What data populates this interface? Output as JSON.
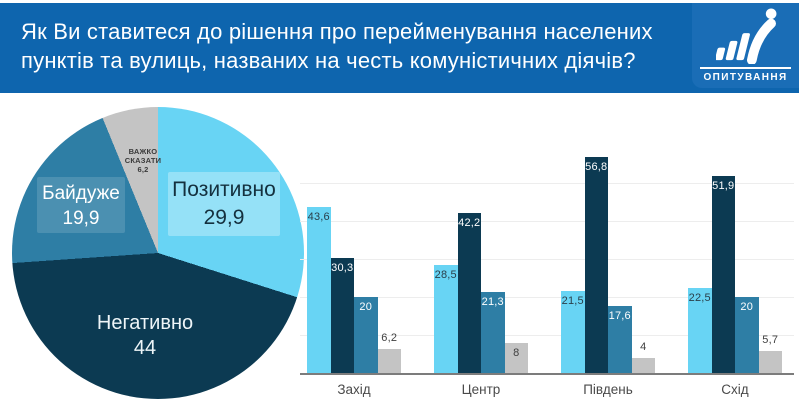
{
  "header": {
    "title_lines": [
      "Як Ви ставитеся до рішення про перейменування населених",
      "пунктів та вулиць, названих на честь комуністичних діячів?"
    ],
    "brand": "ОПИТУВАННЯ"
  },
  "colors": {
    "header_blue": "#0e65ae",
    "logo_panel_blue": "#1a6db6",
    "positive_light_blue": "#68d4f4",
    "negative_navy": "#0c3a52",
    "indifferent_teal": "#2e7ea5",
    "hard_to_say_gray": "#c4c4c4",
    "gridline": "#ededed",
    "axis": "#7c7c7c"
  },
  "chart_data": [
    {
      "type": "pie",
      "title": "",
      "start_angle_deg": 0,
      "direction": "clockwise",
      "slices": [
        {
          "label": "Позитивно",
          "value": 29.9,
          "color": "#68d4f4",
          "label_text_color": "#14303e"
        },
        {
          "label": "Негативно",
          "value": 44,
          "color": "#0c3a52",
          "label_text_color": "#eef5f8"
        },
        {
          "label": "Байдуже",
          "value": 19.9,
          "color": "#2e7ea5",
          "label_text_color": "#ffffff"
        },
        {
          "label": "Важко сказати",
          "value": 6.2,
          "color": "#c4c4c4",
          "label_text_color": "#3a3a3a"
        }
      ]
    },
    {
      "type": "bar",
      "title": "",
      "categories": [
        "Захід",
        "Центр",
        "Південь",
        "Схід"
      ],
      "series": [
        {
          "name": "Позитивно",
          "color": "#68d4f4",
          "label_color": "#2a3f4a",
          "values": [
            43.6,
            28.5,
            21.5,
            22.5
          ]
        },
        {
          "name": "Негативно",
          "color": "#0c3a52",
          "label_color": "#ffffff",
          "values": [
            30.3,
            42.2,
            56.8,
            51.9
          ]
        },
        {
          "name": "Байдуже",
          "color": "#2e7ea5",
          "label_color": "#ffffff",
          "values": [
            20,
            21.3,
            17.6,
            20
          ]
        },
        {
          "name": "Важко сказати",
          "color": "#c4c4c4",
          "label_color": "#3f3f3f",
          "values": [
            6.2,
            8,
            4,
            5.7
          ]
        }
      ],
      "ylim": [
        0,
        60
      ],
      "gridlines": [
        10,
        20,
        30,
        40,
        50
      ],
      "grid": true,
      "legend_position": "none",
      "value_labels": true,
      "decimal_separator": ","
    }
  ]
}
